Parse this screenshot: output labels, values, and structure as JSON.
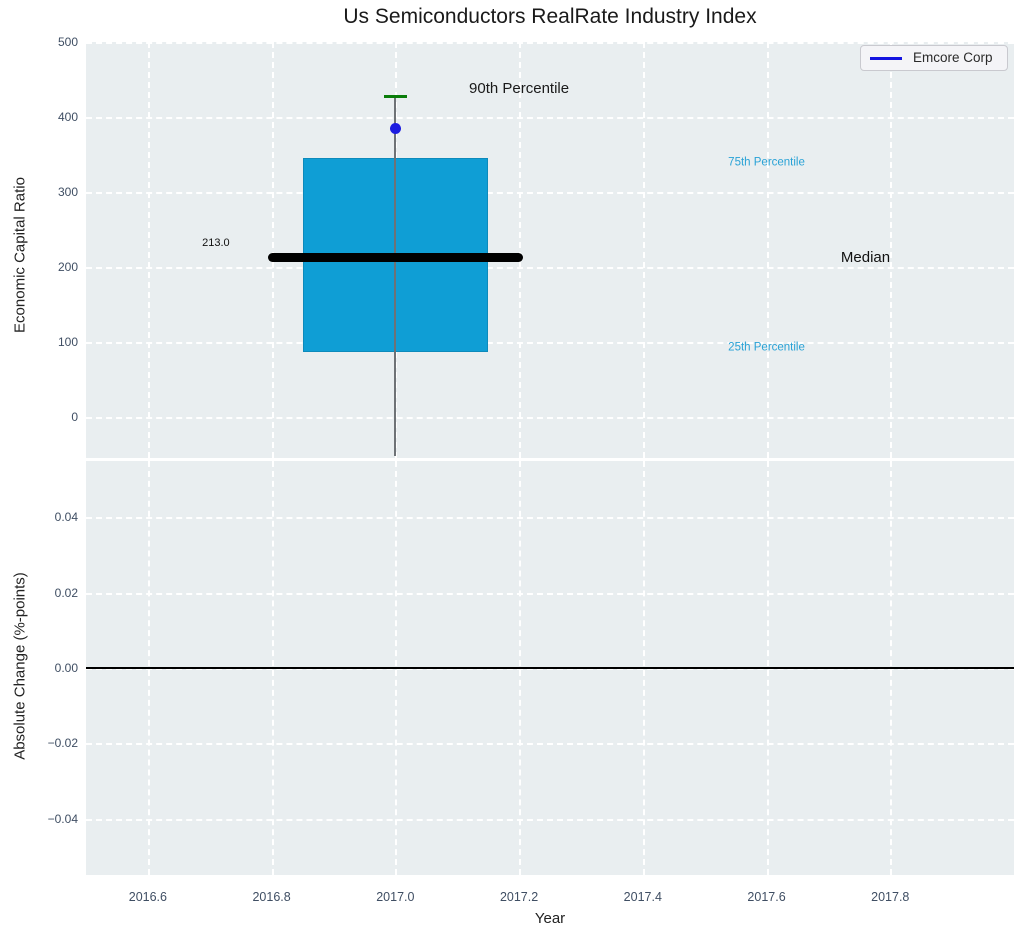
{
  "figure": {
    "plot_background": "#e9eef0",
    "grid_color": "#ffffff",
    "tick_color": "#3f4e63",
    "text_color": "#1a1a1a"
  },
  "chart_data": [
    {
      "type": "box",
      "title": "Us Semiconductors RealRate Industry Index",
      "ylabel": "Economic Capital Ratio",
      "ylim": [
        -55,
        500
      ],
      "yticks": [
        {
          "v": 0,
          "label": "0"
        },
        {
          "v": 100,
          "label": "100"
        },
        {
          "v": 200,
          "label": "200"
        },
        {
          "v": 300,
          "label": "300"
        },
        {
          "v": 400,
          "label": "400"
        },
        {
          "v": 500,
          "label": "500"
        }
      ],
      "xlim": [
        2016.5,
        2018.0
      ],
      "grid": true,
      "legend": {
        "label": "Emcore Corp",
        "position": "upper right",
        "line_color": "#1414e0"
      },
      "box": {
        "x": 2017.0,
        "width": 0.3,
        "q1": 86,
        "median": 213,
        "q3": 345,
        "p90": 427,
        "whisker_extends_below_axis": true,
        "median_x0": 2016.8,
        "median_x1": 2017.2,
        "box_color": "#0f9ed5",
        "median_color": "#000000",
        "cap_color": "#0a7d0a",
        "whisker_color": "#6e7276"
      },
      "point": {
        "name": "Emcore Corp",
        "x": 2017.0,
        "y": 385,
        "color": "#1c1ce0"
      },
      "median_value_label": "213.0",
      "annotations": [
        {
          "text": "90th Percentile",
          "x": 2017.2,
          "y": 437,
          "color": "#1a1a1a",
          "size": 15
        },
        {
          "text": "75th Percentile",
          "x": 2017.6,
          "y": 338,
          "color": "#29a2d6",
          "size": 11.5
        },
        {
          "text": "Median",
          "x": 2017.76,
          "y": 212,
          "color": "#111111",
          "size": 15
        },
        {
          "text": "25th Percentile",
          "x": 2017.6,
          "y": 92,
          "color": "#29a2d6",
          "size": 11.5
        },
        {
          "text": "213.0",
          "x": 2016.71,
          "y": 232,
          "color": "#111111",
          "size": 11
        }
      ]
    },
    {
      "type": "line",
      "ylabel": "Absolute Change (%-points)",
      "xlabel": "Year",
      "ylim": [
        -0.055,
        0.055
      ],
      "yticks": [
        {
          "v": 0.04,
          "label": "0.04"
        },
        {
          "v": 0.02,
          "label": "0.02"
        },
        {
          "v": 0.0,
          "label": "0.00"
        },
        {
          "v": -0.02,
          "label": "−0.02"
        },
        {
          "v": -0.04,
          "label": "−0.04"
        }
      ],
      "xlim": [
        2016.5,
        2018.0
      ],
      "xticks": [
        {
          "v": 2016.6,
          "label": "2016.6"
        },
        {
          "v": 2016.8,
          "label": "2016.8"
        },
        {
          "v": 2017.0,
          "label": "2017.0"
        },
        {
          "v": 2017.2,
          "label": "2017.2"
        },
        {
          "v": 2017.4,
          "label": "2017.4"
        },
        {
          "v": 2017.6,
          "label": "2017.6"
        },
        {
          "v": 2017.8,
          "label": "2017.8"
        }
      ],
      "zero_line": {
        "y": 0,
        "color": "#000000"
      },
      "series": []
    }
  ]
}
